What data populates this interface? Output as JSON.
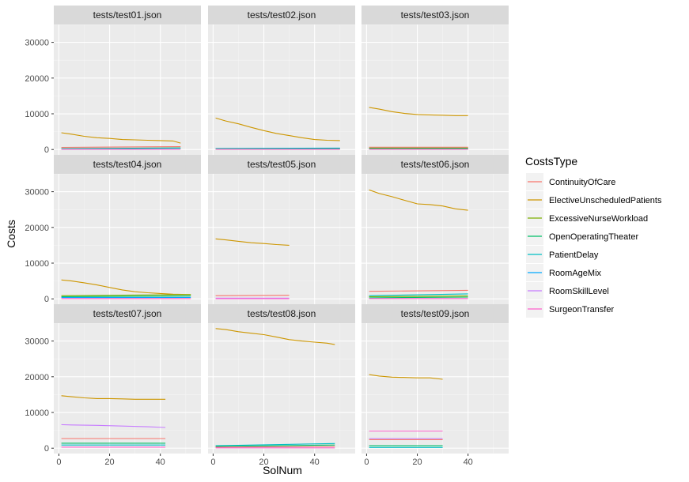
{
  "chart_data": {
    "type": "line",
    "facet": true,
    "xlabel": "SolNum",
    "ylabel": "Costs",
    "xlim": [
      -2,
      56
    ],
    "ylim": [
      -1500,
      35000
    ],
    "xticks": [
      0,
      20,
      40
    ],
    "yticks": [
      0,
      10000,
      20000,
      30000
    ],
    "grid": true,
    "legend": {
      "title": "CostsType",
      "placement": "right",
      "entries": [
        {
          "name": "ContinuityOfCare",
          "color": "#F8766D"
        },
        {
          "name": "ElectiveUnscheduledPatients",
          "color": "#CD9600"
        },
        {
          "name": "ExcessiveNurseWorkload",
          "color": "#7CAE00"
        },
        {
          "name": "OpenOperatingTheater",
          "color": "#00BE67"
        },
        {
          "name": "PatientDelay",
          "color": "#00BFC4"
        },
        {
          "name": "RoomAgeMix",
          "color": "#00A9FF"
        },
        {
          "name": "RoomSkillLevel",
          "color": "#C77CFF"
        },
        {
          "name": "SurgeonTransfer",
          "color": "#FF61CC"
        }
      ]
    },
    "panels": [
      {
        "title": "tests/test01.json",
        "series": [
          {
            "name": "ElectiveUnscheduledPatients",
            "x": [
              1,
              5,
              10,
              15,
              20,
              25,
              30,
              35,
              40,
              45,
              48
            ],
            "y": [
              4700,
              4300,
              3700,
              3300,
              3100,
              2800,
              2700,
              2600,
              2500,
              2400,
              1800
            ]
          },
          {
            "name": "ContinuityOfCare",
            "x": [
              1,
              48
            ],
            "y": [
              600,
              800
            ]
          },
          {
            "name": "OpenOperatingTheater",
            "x": [
              1,
              48
            ],
            "y": [
              250,
              450
            ]
          },
          {
            "name": "PatientDelay",
            "x": [
              1,
              48
            ],
            "y": [
              150,
              350
            ]
          },
          {
            "name": "SurgeonTransfer",
            "x": [
              1,
              48
            ],
            "y": [
              80,
              80
            ]
          }
        ]
      },
      {
        "title": "tests/test02.json",
        "series": [
          {
            "name": "ElectiveUnscheduledPatients",
            "x": [
              1,
              5,
              10,
              15,
              20,
              25,
              30,
              35,
              40,
              45,
              50
            ],
            "y": [
              8800,
              8000,
              7200,
              6200,
              5300,
              4500,
              3900,
              3300,
              2800,
              2600,
              2500
            ]
          },
          {
            "name": "RoomAgeMix",
            "x": [
              1,
              50
            ],
            "y": [
              300,
              400
            ]
          },
          {
            "name": "OpenOperatingTheater",
            "x": [
              1,
              50
            ],
            "y": [
              200,
              250
            ]
          },
          {
            "name": "SurgeonTransfer",
            "x": [
              1,
              50
            ],
            "y": [
              80,
              80
            ]
          }
        ]
      },
      {
        "title": "tests/test03.json",
        "series": [
          {
            "name": "ElectiveUnscheduledPatients",
            "x": [
              1,
              5,
              10,
              15,
              20,
              25,
              30,
              35,
              40
            ],
            "y": [
              11800,
              11300,
              10600,
              10100,
              9800,
              9700,
              9600,
              9500,
              9500
            ]
          },
          {
            "name": "ContinuityOfCare",
            "x": [
              1,
              40
            ],
            "y": [
              650,
              650
            ]
          },
          {
            "name": "ExcessiveNurseWorkload",
            "x": [
              1,
              40
            ],
            "y": [
              400,
              400
            ]
          },
          {
            "name": "OpenOperatingTheater",
            "x": [
              1,
              40
            ],
            "y": [
              250,
              300
            ]
          },
          {
            "name": "SurgeonTransfer",
            "x": [
              1,
              40
            ],
            "y": [
              80,
              80
            ]
          }
        ]
      },
      {
        "title": "tests/test04.json",
        "series": [
          {
            "name": "ElectiveUnscheduledPatients",
            "x": [
              1,
              5,
              10,
              15,
              20,
              25,
              30,
              35,
              40,
              45,
              52
            ],
            "y": [
              5300,
              5000,
              4500,
              3900,
              3200,
              2500,
              2000,
              1700,
              1500,
              1300,
              1200
            ]
          },
          {
            "name": "ExcessiveNurseWorkload",
            "x": [
              1,
              52
            ],
            "y": [
              900,
              1200
            ]
          },
          {
            "name": "OpenOperatingTheater",
            "x": [
              1,
              52
            ],
            "y": [
              600,
              800
            ]
          },
          {
            "name": "RoomAgeMix",
            "x": [
              1,
              52
            ],
            "y": [
              350,
              400
            ]
          },
          {
            "name": "SurgeonTransfer",
            "x": [
              1,
              52
            ],
            "y": [
              100,
              100
            ]
          }
        ]
      },
      {
        "title": "tests/test05.json",
        "series": [
          {
            "name": "ElectiveUnscheduledPatients",
            "x": [
              1,
              5,
              10,
              15,
              20,
              25,
              30
            ],
            "y": [
              16800,
              16500,
              16100,
              15700,
              15500,
              15200,
              15000
            ]
          },
          {
            "name": "ContinuityOfCare",
            "x": [
              1,
              30
            ],
            "y": [
              900,
              1000
            ]
          },
          {
            "name": "RoomSkillLevel",
            "x": [
              1,
              30
            ],
            "y": [
              200,
              200
            ]
          },
          {
            "name": "SurgeonTransfer",
            "x": [
              1,
              30
            ],
            "y": [
              80,
              80
            ]
          }
        ]
      },
      {
        "title": "tests/test06.json",
        "series": [
          {
            "name": "ElectiveUnscheduledPatients",
            "x": [
              1,
              5,
              10,
              15,
              20,
              25,
              30,
              35,
              40
            ],
            "y": [
              30500,
              29500,
              28600,
              27600,
              26600,
              26400,
              26000,
              25200,
              24800
            ]
          },
          {
            "name": "ContinuityOfCare",
            "x": [
              1,
              40
            ],
            "y": [
              2100,
              2400
            ]
          },
          {
            "name": "PatientDelay",
            "x": [
              1,
              40
            ],
            "y": [
              900,
              1400
            ]
          },
          {
            "name": "ExcessiveNurseWorkload",
            "x": [
              1,
              40
            ],
            "y": [
              600,
              800
            ]
          },
          {
            "name": "OpenOperatingTheater",
            "x": [
              1,
              40
            ],
            "y": [
              300,
              500
            ]
          },
          {
            "name": "SurgeonTransfer",
            "x": [
              1,
              40
            ],
            "y": [
              100,
              100
            ]
          }
        ]
      },
      {
        "title": "tests/test07.json",
        "series": [
          {
            "name": "ElectiveUnscheduledPatients",
            "x": [
              1,
              5,
              10,
              15,
              20,
              25,
              30,
              35,
              42
            ],
            "y": [
              14700,
              14400,
              14100,
              13900,
              13900,
              13800,
              13700,
              13700,
              13700
            ]
          },
          {
            "name": "RoomSkillLevel",
            "x": [
              1,
              5,
              15,
              25,
              35,
              42
            ],
            "y": [
              6600,
              6500,
              6400,
              6200,
              6000,
              5800
            ]
          },
          {
            "name": "ContinuityOfCare",
            "x": [
              1,
              42
            ],
            "y": [
              2700,
              2700
            ]
          },
          {
            "name": "OpenOperatingTheater",
            "x": [
              1,
              42
            ],
            "y": [
              1400,
              1400
            ]
          },
          {
            "name": "PatientDelay",
            "x": [
              1,
              42
            ],
            "y": [
              900,
              900
            ]
          },
          {
            "name": "SurgeonTransfer",
            "x": [
              1,
              42
            ],
            "y": [
              300,
              300
            ]
          }
        ]
      },
      {
        "title": "tests/test08.json",
        "series": [
          {
            "name": "ElectiveUnscheduledPatients",
            "x": [
              1,
              5,
              10,
              15,
              20,
              25,
              30,
              35,
              40,
              45,
              48
            ],
            "y": [
              33500,
              33200,
              32600,
              32200,
              31800,
              31100,
              30400,
              30000,
              29700,
              29400,
              29000
            ]
          },
          {
            "name": "PatientDelay",
            "x": [
              1,
              48
            ],
            "y": [
              700,
              1300
            ]
          },
          {
            "name": "OpenOperatingTheater",
            "x": [
              1,
              48
            ],
            "y": [
              500,
              900
            ]
          },
          {
            "name": "ContinuityOfCare",
            "x": [
              1,
              48
            ],
            "y": [
              300,
              500
            ]
          },
          {
            "name": "SurgeonTransfer",
            "x": [
              1,
              48
            ],
            "y": [
              100,
              100
            ]
          }
        ]
      },
      {
        "title": "tests/test09.json",
        "series": [
          {
            "name": "ElectiveUnscheduledPatients",
            "x": [
              1,
              5,
              10,
              15,
              20,
              25,
              30
            ],
            "y": [
              20600,
              20200,
              19900,
              19800,
              19700,
              19700,
              19300
            ]
          },
          {
            "name": "SurgeonTransfer",
            "x": [
              1,
              30
            ],
            "y": [
              4800,
              4800
            ]
          },
          {
            "name": "RoomSkillLevel",
            "x": [
              1,
              30
            ],
            "y": [
              2700,
              2700
            ]
          },
          {
            "name": "ContinuityOfCare",
            "x": [
              1,
              30
            ],
            "y": [
              2400,
              2400
            ]
          },
          {
            "name": "OpenOperatingTheater",
            "x": [
              1,
              30
            ],
            "y": [
              700,
              700
            ]
          },
          {
            "name": "PatientDelay",
            "x": [
              1,
              30
            ],
            "y": [
              200,
              200
            ]
          }
        ]
      }
    ]
  }
}
